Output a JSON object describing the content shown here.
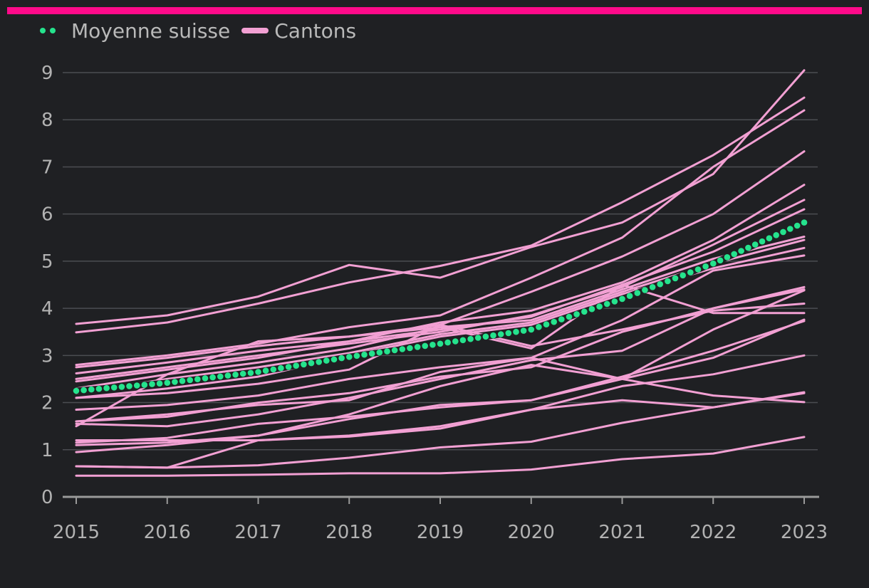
{
  "colors": {
    "background": "#1f2023",
    "top_bar": "#ff0a8a",
    "average": "#25e38d",
    "cantons": "#f2a0d3",
    "grid": "#4b4d52",
    "axis": "#9a9a9a",
    "text": "#b2b2b2"
  },
  "legend": {
    "average_label": "Moyenne suisse",
    "cantons_label": "Cantons"
  },
  "chart_data": {
    "type": "line",
    "title": "",
    "xlabel": "",
    "ylabel": "",
    "x": [
      2015,
      2016,
      2017,
      2018,
      2019,
      2020,
      2021,
      2022,
      2023
    ],
    "ylim": [
      0,
      9
    ],
    "yticks": [
      0,
      1,
      2,
      3,
      4,
      5,
      6,
      7,
      8,
      9
    ],
    "grid": true,
    "legend_position": "top-left",
    "average": {
      "name": "Moyenne suisse",
      "values": [
        2.25,
        2.42,
        2.65,
        2.97,
        3.25,
        3.55,
        4.2,
        4.95,
        5.82
      ]
    },
    "cantons": [
      [
        3.67,
        3.85,
        4.25,
        4.92,
        4.65,
        5.3,
        5.82,
        6.85,
        9.05
      ],
      [
        3.49,
        3.7,
        4.1,
        4.55,
        4.9,
        5.33,
        6.25,
        7.25,
        8.47
      ],
      [
        2.8,
        3.0,
        3.25,
        3.6,
        3.85,
        4.65,
        5.5,
        7.0,
        8.2
      ],
      [
        2.75,
        2.95,
        3.2,
        3.4,
        3.65,
        4.35,
        5.1,
        6.0,
        7.33
      ],
      [
        2.62,
        2.85,
        3.1,
        3.3,
        3.7,
        3.95,
        4.55,
        5.45,
        6.62
      ],
      [
        2.5,
        2.75,
        3.0,
        3.25,
        3.5,
        3.85,
        4.45,
        5.35,
        6.3
      ],
      [
        2.45,
        2.7,
        2.95,
        3.3,
        3.55,
        3.82,
        4.5,
        5.2,
        6.1
      ],
      [
        2.3,
        2.6,
        2.85,
        3.15,
        3.6,
        3.75,
        4.4,
        5.05,
        5.52
      ],
      [
        2.2,
        2.5,
        2.75,
        3.05,
        3.45,
        3.7,
        4.35,
        4.95,
        5.45
      ],
      [
        2.1,
        2.3,
        2.55,
        3.0,
        3.4,
        3.65,
        4.3,
        4.85,
        5.28
      ],
      [
        1.5,
        2.6,
        3.3,
        3.4,
        3.6,
        3.15,
        4.5,
        3.9,
        3.9
      ],
      [
        1.85,
        1.95,
        2.15,
        2.5,
        2.75,
        2.95,
        3.75,
        4.8,
        5.12
      ],
      [
        1.6,
        1.7,
        2.0,
        2.2,
        2.55,
        2.75,
        3.5,
        4.0,
        4.45
      ],
      [
        2.1,
        2.2,
        2.4,
        2.7,
        3.65,
        3.2,
        3.55,
        3.95,
        4.1
      ],
      [
        1.55,
        1.5,
        1.75,
        2.1,
        2.5,
        2.9,
        3.1,
        4.0,
        4.4
      ],
      [
        1.6,
        1.75,
        1.95,
        2.05,
        2.65,
        2.95,
        2.5,
        2.15,
        2.01
      ],
      [
        1.15,
        1.25,
        1.55,
        1.7,
        1.9,
        2.05,
        2.5,
        3.55,
        4.38
      ],
      [
        1.1,
        1.15,
        1.3,
        1.65,
        1.95,
        2.05,
        2.55,
        3.1,
        3.73
      ],
      [
        0.95,
        1.1,
        1.3,
        1.75,
        2.35,
        2.8,
        2.5,
        2.95,
        3.76
      ],
      [
        1.2,
        1.2,
        1.2,
        1.3,
        1.5,
        1.85,
        2.35,
        2.6,
        3.0
      ],
      [
        0.65,
        0.62,
        1.2,
        1.28,
        1.45,
        1.85,
        2.05,
        1.9,
        2.22
      ],
      [
        0.65,
        0.62,
        0.67,
        0.83,
        1.05,
        1.17,
        1.57,
        1.9,
        2.2
      ],
      [
        0.45,
        0.45,
        0.47,
        0.5,
        0.5,
        0.58,
        0.8,
        0.92,
        1.27
      ]
    ]
  }
}
